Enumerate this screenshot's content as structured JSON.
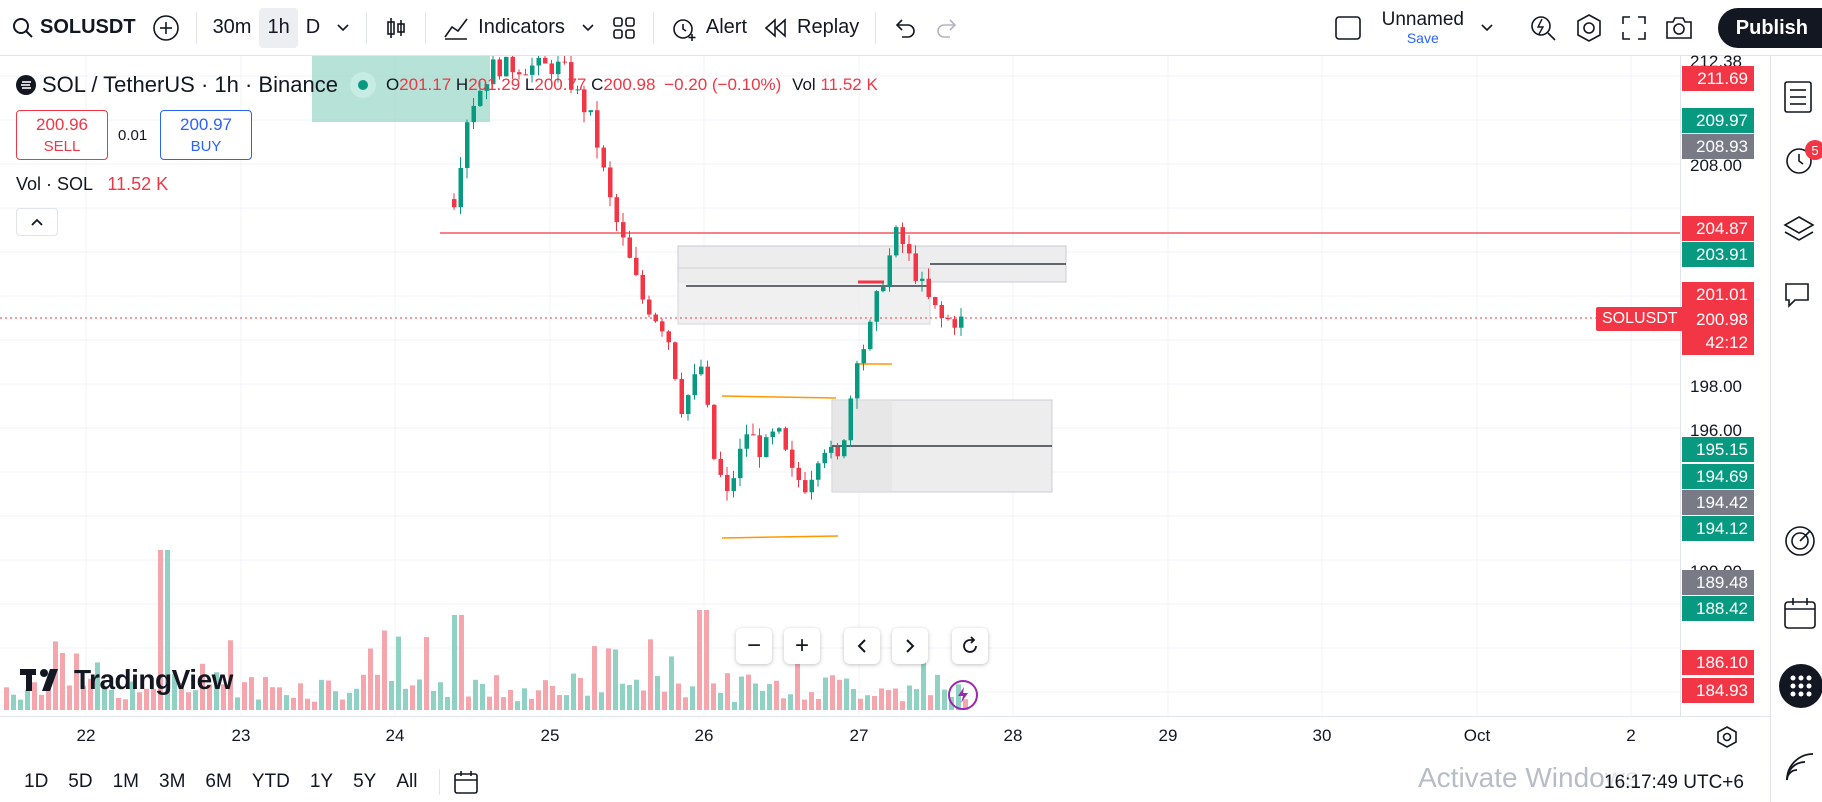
{
  "toolbar": {
    "symbol": "SOLUSDT",
    "intervals": [
      "30m",
      "1h",
      "D"
    ],
    "indicators_label": "Indicators",
    "alert_label": "Alert",
    "replay_label": "Replay",
    "layout_name": "Unnamed",
    "save_label": "Save",
    "publish_label": "Publish"
  },
  "legend": {
    "title": "SOL / TetherUS · 1h · Binance",
    "o_label": "O",
    "o_value": "201.17",
    "h_label": "H",
    "h_value": "201.29",
    "l_label": "L",
    "l_value": "200.77",
    "c_label": "C",
    "c_value": "200.98",
    "change": "−0.20 (−0.10%)",
    "vol_label": "Vol",
    "vol_value": "11.52 K"
  },
  "trade": {
    "sell_price": "200.96",
    "sell_label": "SELL",
    "spread": "0.01",
    "buy_price": "200.97",
    "buy_label": "BUY"
  },
  "volume_legend": {
    "label": "Vol · SOL",
    "value": "11.52 K"
  },
  "price_axis": {
    "ticks": [
      "212.38",
      "208.00",
      "198.00",
      "196.00",
      "190.00"
    ],
    "labels": [
      {
        "text": "211.69",
        "color": "#f23645"
      },
      {
        "text": "209.97",
        "color": "#089981"
      },
      {
        "text": "208.93",
        "color": "#787b86"
      },
      {
        "text": "204.87",
        "color": "#f23645"
      },
      {
        "text": "203.91",
        "color": "#089981"
      },
      {
        "text": "201.01",
        "color": "#f23645"
      },
      {
        "text": "200.98",
        "color": "#f23645"
      },
      {
        "text": "42:12",
        "color": "#f23645"
      },
      {
        "text": "195.15",
        "color": "#089981"
      },
      {
        "text": "194.69",
        "color": "#089981"
      },
      {
        "text": "194.42",
        "color": "#787b86"
      },
      {
        "text": "194.12",
        "color": "#089981"
      },
      {
        "text": "189.48",
        "color": "#787b86"
      },
      {
        "text": "188.42",
        "color": "#089981"
      },
      {
        "text": "186.10",
        "color": "#f23645"
      },
      {
        "text": "184.93",
        "color": "#f23645"
      }
    ],
    "symbol_tag": "SOLUSDT"
  },
  "time_axis": {
    "labels": [
      "22",
      "23",
      "24",
      "25",
      "26",
      "27",
      "28",
      "29",
      "30",
      "Oct",
      "2"
    ]
  },
  "ranges": [
    "1D",
    "5D",
    "1M",
    "3M",
    "6M",
    "YTD",
    "1Y",
    "5Y",
    "All"
  ],
  "clock": "16:17:49 UTC+6",
  "watermark": "Activate Windows",
  "brand": "TradingView",
  "badge_count": "5",
  "colors": {
    "up": "#089981",
    "down": "#f23645",
    "accent": "#2962ff"
  }
}
